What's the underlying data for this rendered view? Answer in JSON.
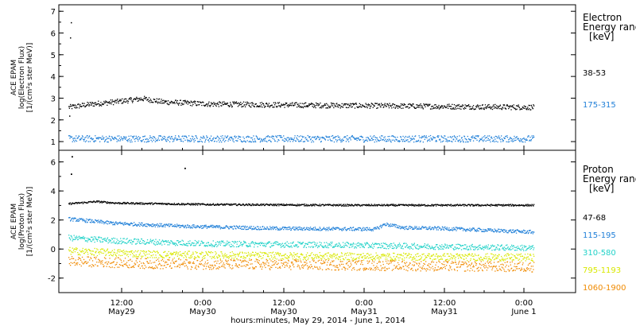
{
  "chart_data": [
    {
      "type": "scatter",
      "panel": "electron",
      "ylabel_lines": [
        "ACE EPAM",
        "log(Electron Flux)",
        "[1/(cm²s ster MeV)]"
      ],
      "ylim": [
        0.6,
        7.3
      ],
      "yticks": [
        1,
        2,
        3,
        4,
        5,
        6,
        7
      ],
      "legend_title_lines": [
        "Electron",
        "Energy range",
        "[keV]"
      ],
      "series": [
        {
          "name": "38-53",
          "color": "#000000",
          "base": 2.65,
          "spread": 0.12,
          "anchors": [
            [
              0,
              2.6
            ],
            [
              0.05,
              2.75
            ],
            [
              0.1,
              2.85
            ],
            [
              0.16,
              3.0
            ],
            [
              0.2,
              2.85
            ],
            [
              0.3,
              2.75
            ],
            [
              0.5,
              2.7
            ],
            [
              0.75,
              2.65
            ],
            [
              1.0,
              2.6
            ]
          ]
        },
        {
          "name": "175-315",
          "color": "#1f7fd8",
          "base": 1.15,
          "spread": 0.15,
          "anchors": [
            [
              0,
              1.15
            ],
            [
              0.5,
              1.15
            ],
            [
              1.0,
              1.15
            ]
          ]
        }
      ]
    },
    {
      "type": "scatter",
      "panel": "proton",
      "ylabel_lines": [
        "ACE EPAM",
        "log(Proton Flux)",
        "[1/(cm²s ster MeV)]"
      ],
      "ylim": [
        -3.0,
        6.8
      ],
      "yticks": [
        -2,
        0,
        2,
        4,
        6
      ],
      "legend_title_lines": [
        "Proton",
        "Energy range",
        "[keV]"
      ],
      "series": [
        {
          "name": "47-68",
          "color": "#000000",
          "base": 3.1,
          "spread": 0.06,
          "anchors": [
            [
              0,
              3.15
            ],
            [
              0.06,
              3.3
            ],
            [
              0.1,
              3.2
            ],
            [
              0.3,
              3.1
            ],
            [
              0.6,
              3.05
            ],
            [
              1.0,
              3.05
            ]
          ]
        },
        {
          "name": "115-195",
          "color": "#1f7fd8",
          "base": 1.5,
          "spread": 0.12,
          "anchors": [
            [
              0,
              2.1
            ],
            [
              0.05,
              1.95
            ],
            [
              0.1,
              1.8
            ],
            [
              0.25,
              1.6
            ],
            [
              0.45,
              1.45
            ],
            [
              0.66,
              1.4
            ],
            [
              0.68,
              1.75
            ],
            [
              0.72,
              1.5
            ],
            [
              0.8,
              1.45
            ],
            [
              1.0,
              1.2
            ]
          ]
        },
        {
          "name": "310-580",
          "color": "#22d2c8",
          "base": 0.3,
          "spread": 0.2,
          "anchors": [
            [
              0,
              0.8
            ],
            [
              0.1,
              0.6
            ],
            [
              0.3,
              0.4
            ],
            [
              0.6,
              0.3
            ],
            [
              0.8,
              0.2
            ],
            [
              1.0,
              0.1
            ]
          ]
        },
        {
          "name": "795-1193",
          "color": "#d8e800",
          "base": -0.4,
          "spread": 0.25,
          "anchors": [
            [
              0,
              -0.1
            ],
            [
              0.2,
              -0.35
            ],
            [
              0.5,
              -0.45
            ],
            [
              1.0,
              -0.55
            ]
          ]
        },
        {
          "name": "1060-1900",
          "color": "#f08a00",
          "base": -1.0,
          "spread": 0.35,
          "anchors": [
            [
              0,
              -0.8
            ],
            [
              0.2,
              -1.0
            ],
            [
              0.5,
              -1.05
            ],
            [
              1.0,
              -1.2
            ]
          ]
        }
      ]
    }
  ],
  "x_axis": {
    "tick_labels": [
      {
        "time": "12:00",
        "date": "May29"
      },
      {
        "time": "0:00",
        "date": "May30"
      },
      {
        "time": "12:00",
        "date": "May30"
      },
      {
        "time": "0:00",
        "date": "May31"
      },
      {
        "time": "12:00",
        "date": "May31"
      },
      {
        "time": "0:00",
        "date": "June 1"
      }
    ],
    "title": "hours:minutes, May 29, 2014 - June 1, 2014"
  }
}
